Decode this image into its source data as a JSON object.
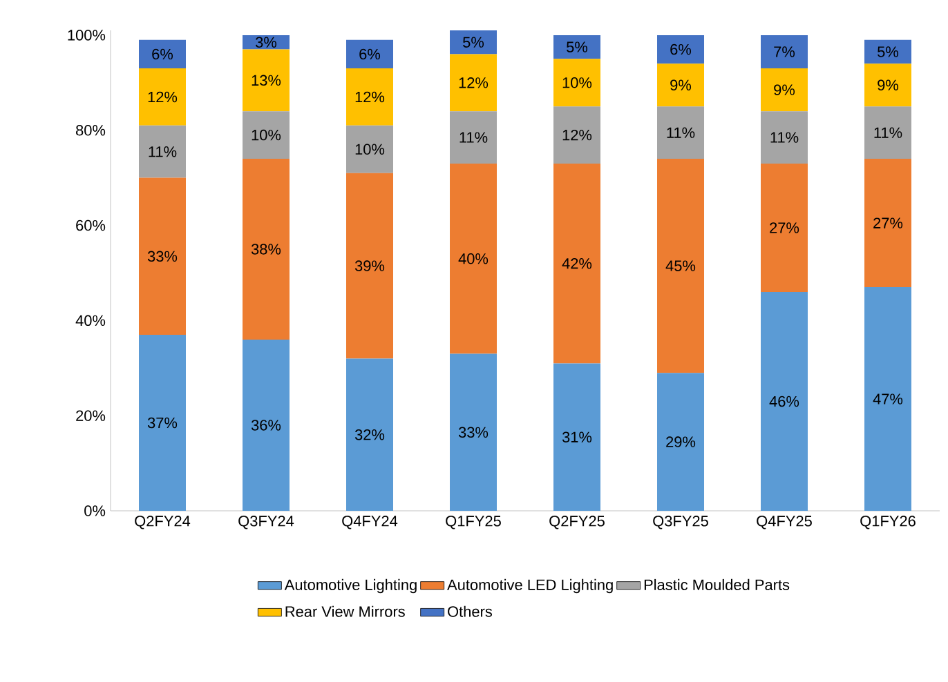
{
  "chart_data": {
    "type": "bar",
    "stacked": true,
    "categories": [
      "Q2FY24",
      "Q3FY24",
      "Q4FY24",
      "Q1FY25",
      "Q2FY25",
      "Q3FY25",
      "Q4FY25",
      "Q1FY26"
    ],
    "ylim": [
      0,
      101
    ],
    "yticks": [
      {
        "value": 0,
        "label": "0%"
      },
      {
        "value": 20,
        "label": "20%"
      },
      {
        "value": 40,
        "label": "40%"
      },
      {
        "value": 60,
        "label": "60%"
      },
      {
        "value": 80,
        "label": "80%"
      },
      {
        "value": 100,
        "label": "100%"
      }
    ],
    "legend": "bottom",
    "grid": false,
    "series": [
      {
        "name": "Automotive Lighting",
        "color": "#5b9bd5",
        "values": [
          37,
          36,
          32,
          33,
          31,
          29,
          46,
          47
        ],
        "value_labels": [
          "37%",
          "36%",
          "32%",
          "33%",
          "31%",
          "29%",
          "46%",
          "47%"
        ]
      },
      {
        "name": "Automotive LED Lighting",
        "color": "#ed7d31",
        "values": [
          33,
          38,
          39,
          40,
          42,
          45,
          27,
          27
        ],
        "value_labels": [
          "33%",
          "38%",
          "39%",
          "40%",
          "42%",
          "45%",
          "27%",
          "27%"
        ]
      },
      {
        "name": "Plastic Moulded Parts",
        "color": "#a5a5a5",
        "values": [
          11,
          10,
          10,
          11,
          12,
          11,
          11,
          11
        ],
        "value_labels": [
          "11%",
          "10%",
          "10%",
          "11%",
          "12%",
          "11%",
          "11%",
          "11%"
        ]
      },
      {
        "name": "Rear View Mirrors",
        "color": "#ffc000",
        "values": [
          12,
          13,
          12,
          12,
          10,
          9,
          9,
          9
        ],
        "value_labels": [
          "12%",
          "13%",
          "12%",
          "12%",
          "10%",
          "9%",
          "9%",
          "9%"
        ]
      },
      {
        "name": "Others",
        "color": "#4472c4",
        "values": [
          6,
          3,
          6,
          5,
          5,
          6,
          7,
          5
        ],
        "value_labels": [
          "6%",
          "3%",
          "6%",
          "5%",
          "5%",
          "6%",
          "7%",
          "5%"
        ]
      }
    ]
  }
}
